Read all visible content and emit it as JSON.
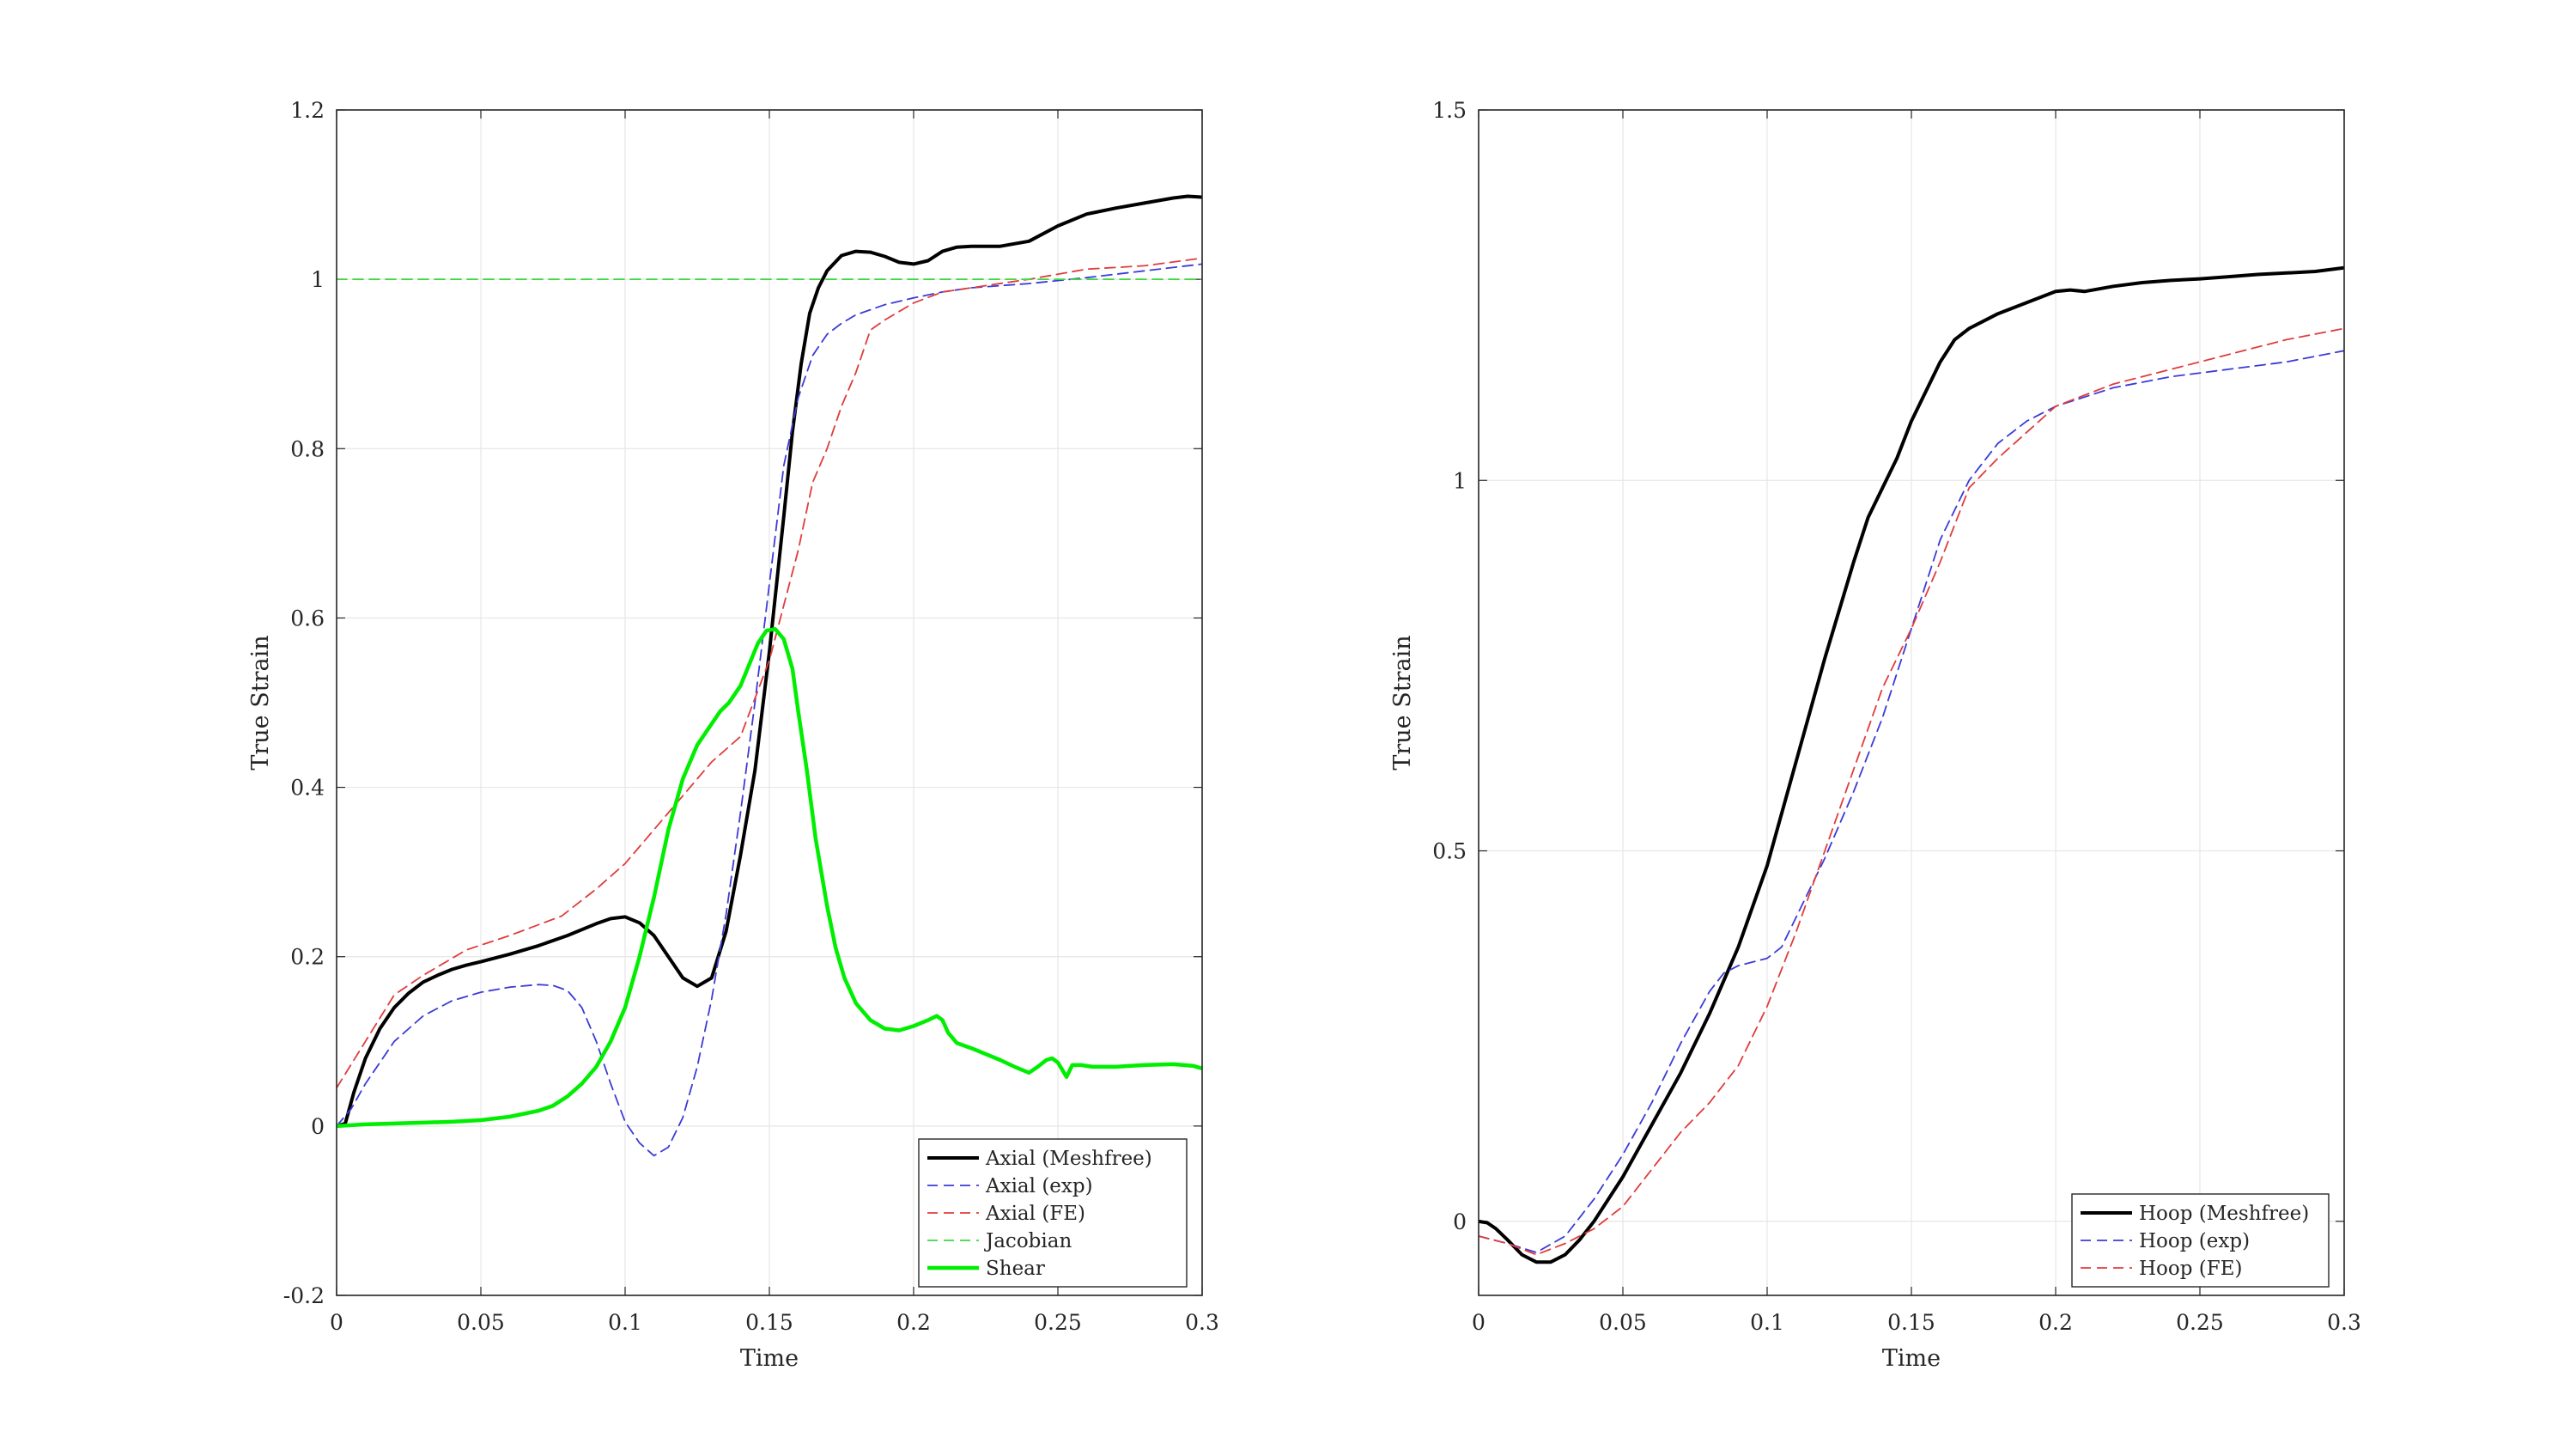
{
  "chart_data": [
    {
      "type": "line",
      "xlabel": "Time",
      "ylabel": "True Strain",
      "xlim": [
        0,
        0.3
      ],
      "ylim": [
        -0.2,
        1.2
      ],
      "xticks": [
        "0",
        "0.05",
        "0.1",
        "0.15",
        "0.2",
        "0.25",
        "0.3"
      ],
      "yticks": [
        "-0.2",
        "0",
        "0.2",
        "0.4",
        "0.6",
        "0.8",
        "1",
        "1.2"
      ],
      "grid": true,
      "legend_position": "bottom-right",
      "series": [
        {
          "name": "Axial (Meshfree)",
          "color": "#000000",
          "style": "solid",
          "width": 4,
          "x": [
            0,
            0.003,
            0.006,
            0.01,
            0.015,
            0.02,
            0.025,
            0.03,
            0.035,
            0.04,
            0.045,
            0.05,
            0.06,
            0.07,
            0.08,
            0.09,
            0.095,
            0.1,
            0.105,
            0.11,
            0.115,
            0.12,
            0.125,
            0.13,
            0.135,
            0.14,
            0.145,
            0.15,
            0.155,
            0.158,
            0.161,
            0.164,
            0.167,
            0.17,
            0.175,
            0.18,
            0.185,
            0.19,
            0.195,
            0.2,
            0.205,
            0.21,
            0.215,
            0.22,
            0.23,
            0.24,
            0.25,
            0.26,
            0.27,
            0.28,
            0.29,
            0.295,
            0.3
          ],
          "y": [
            0,
            0.003,
            0.04,
            0.08,
            0.115,
            0.14,
            0.157,
            0.17,
            0.178,
            0.185,
            0.19,
            0.194,
            0.203,
            0.213,
            0.225,
            0.239,
            0.245,
            0.247,
            0.24,
            0.225,
            0.2,
            0.175,
            0.165,
            0.175,
            0.23,
            0.32,
            0.42,
            0.56,
            0.72,
            0.82,
            0.9,
            0.96,
            0.99,
            1.01,
            1.028,
            1.033,
            1.032,
            1.027,
            1.02,
            1.018,
            1.022,
            1.033,
            1.038,
            1.039,
            1.039,
            1.045,
            1.063,
            1.077,
            1.084,
            1.09,
            1.096,
            1.098,
            1.097
          ]
        },
        {
          "name": "Axial (exp)",
          "color": "#3b3bd8",
          "style": "dashed",
          "width": 1.8,
          "x": [
            0,
            0.005,
            0.01,
            0.02,
            0.03,
            0.04,
            0.05,
            0.06,
            0.07,
            0.075,
            0.08,
            0.085,
            0.09,
            0.095,
            0.1,
            0.105,
            0.11,
            0.115,
            0.12,
            0.125,
            0.13,
            0.135,
            0.14,
            0.145,
            0.15,
            0.155,
            0.16,
            0.165,
            0.17,
            0.175,
            0.18,
            0.19,
            0.2,
            0.21,
            0.22,
            0.24,
            0.26,
            0.28,
            0.3
          ],
          "y": [
            0,
            0.02,
            0.05,
            0.1,
            0.13,
            0.148,
            0.158,
            0.164,
            0.167,
            0.166,
            0.16,
            0.14,
            0.1,
            0.05,
            0.005,
            -0.02,
            -0.035,
            -0.025,
            0.01,
            0.07,
            0.15,
            0.25,
            0.37,
            0.5,
            0.64,
            0.78,
            0.86,
            0.91,
            0.935,
            0.948,
            0.958,
            0.97,
            0.978,
            0.985,
            0.99,
            0.995,
            1.002,
            1.01,
            1.018
          ]
        },
        {
          "name": "Axial (FE)",
          "color": "#e03c3c",
          "style": "dashed",
          "width": 1.8,
          "x": [
            0,
            0.01,
            0.02,
            0.03,
            0.045,
            0.06,
            0.078,
            0.09,
            0.1,
            0.11,
            0.12,
            0.13,
            0.14,
            0.15,
            0.16,
            0.165,
            0.17,
            0.175,
            0.18,
            0.185,
            0.19,
            0.2,
            0.21,
            0.22,
            0.24,
            0.26,
            0.28,
            0.3
          ],
          "y": [
            0.045,
            0.1,
            0.155,
            0.178,
            0.208,
            0.225,
            0.248,
            0.28,
            0.31,
            0.35,
            0.39,
            0.43,
            0.46,
            0.55,
            0.68,
            0.76,
            0.8,
            0.85,
            0.89,
            0.94,
            0.952,
            0.972,
            0.985,
            0.99,
            1.0,
            1.012,
            1.016,
            1.025
          ]
        },
        {
          "name": "Jacobian",
          "color": "#3ed83e",
          "style": "dashed",
          "width": 1.8,
          "x": [
            0,
            0.3
          ],
          "y": [
            1,
            1
          ]
        },
        {
          "name": "Shear",
          "color": "#00ee00",
          "style": "solid",
          "width": 4.5,
          "x": [
            0,
            0.01,
            0.02,
            0.03,
            0.04,
            0.05,
            0.06,
            0.07,
            0.075,
            0.08,
            0.085,
            0.09,
            0.095,
            0.1,
            0.105,
            0.11,
            0.115,
            0.12,
            0.125,
            0.13,
            0.133,
            0.136,
            0.14,
            0.143,
            0.146,
            0.149,
            0.152,
            0.155,
            0.158,
            0.16,
            0.163,
            0.166,
            0.17,
            0.173,
            0.176,
            0.18,
            0.185,
            0.19,
            0.195,
            0.2,
            0.205,
            0.208,
            0.21,
            0.212,
            0.215,
            0.22,
            0.225,
            0.23,
            0.235,
            0.24,
            0.243,
            0.246,
            0.248,
            0.25,
            0.253,
            0.255,
            0.258,
            0.262,
            0.27,
            0.28,
            0.29,
            0.297,
            0.3
          ],
          "y": [
            0,
            0.002,
            0.003,
            0.004,
            0.005,
            0.007,
            0.011,
            0.018,
            0.024,
            0.035,
            0.05,
            0.07,
            0.1,
            0.14,
            0.2,
            0.27,
            0.35,
            0.41,
            0.45,
            0.475,
            0.49,
            0.5,
            0.52,
            0.545,
            0.57,
            0.585,
            0.587,
            0.575,
            0.54,
            0.49,
            0.42,
            0.34,
            0.26,
            0.21,
            0.175,
            0.145,
            0.125,
            0.115,
            0.113,
            0.118,
            0.125,
            0.13,
            0.125,
            0.11,
            0.098,
            0.092,
            0.085,
            0.078,
            0.07,
            0.063,
            0.07,
            0.078,
            0.08,
            0.075,
            0.058,
            0.072,
            0.072,
            0.07,
            0.07,
            0.072,
            0.073,
            0.071,
            0.068
          ]
        }
      ]
    },
    {
      "type": "line",
      "xlabel": "Time",
      "ylabel": "True Strain",
      "xlim": [
        0,
        0.3
      ],
      "ylim": [
        -0.1,
        1.5
      ],
      "xticks": [
        "0",
        "0.05",
        "0.1",
        "0.15",
        "0.2",
        "0.25",
        "0.3"
      ],
      "yticks": [
        "0",
        "0.5",
        "1",
        "1.5"
      ],
      "grid": true,
      "legend_position": "bottom-right",
      "series": [
        {
          "name": "Hoop (Meshfree)",
          "color": "#000000",
          "style": "solid",
          "width": 4,
          "x": [
            0,
            0.003,
            0.006,
            0.01,
            0.015,
            0.02,
            0.025,
            0.03,
            0.035,
            0.04,
            0.045,
            0.05,
            0.06,
            0.07,
            0.08,
            0.09,
            0.1,
            0.11,
            0.12,
            0.13,
            0.135,
            0.14,
            0.145,
            0.15,
            0.155,
            0.16,
            0.165,
            0.17,
            0.175,
            0.18,
            0.19,
            0.2,
            0.205,
            0.21,
            0.22,
            0.23,
            0.24,
            0.25,
            0.26,
            0.27,
            0.28,
            0.29,
            0.3
          ],
          "y": [
            0,
            -0.002,
            -0.01,
            -0.025,
            -0.045,
            -0.055,
            -0.055,
            -0.045,
            -0.025,
            0,
            0.03,
            0.06,
            0.13,
            0.2,
            0.28,
            0.37,
            0.48,
            0.62,
            0.76,
            0.89,
            0.95,
            0.99,
            1.03,
            1.08,
            1.12,
            1.16,
            1.19,
            1.205,
            1.215,
            1.225,
            1.24,
            1.255,
            1.257,
            1.255,
            1.262,
            1.267,
            1.27,
            1.272,
            1.275,
            1.278,
            1.28,
            1.282,
            1.287
          ]
        },
        {
          "name": "Hoop (exp)",
          "color": "#3b3bd8",
          "style": "dashed",
          "width": 1.8,
          "x": [
            0,
            0.01,
            0.02,
            0.03,
            0.04,
            0.05,
            0.06,
            0.07,
            0.08,
            0.085,
            0.09,
            0.095,
            0.1,
            0.105,
            0.11,
            0.12,
            0.13,
            0.14,
            0.15,
            0.16,
            0.17,
            0.18,
            0.19,
            0.2,
            0.22,
            0.24,
            0.26,
            0.28,
            0.3
          ],
          "y": [
            -0.02,
            -0.03,
            -0.042,
            -0.02,
            0.03,
            0.09,
            0.16,
            0.24,
            0.31,
            0.335,
            0.345,
            0.35,
            0.355,
            0.37,
            0.41,
            0.49,
            0.58,
            0.68,
            0.8,
            0.92,
            1.0,
            1.05,
            1.08,
            1.1,
            1.125,
            1.14,
            1.15,
            1.16,
            1.175
          ]
        },
        {
          "name": "Hoop (FE)",
          "color": "#e03c3c",
          "style": "dashed",
          "width": 1.8,
          "x": [
            0,
            0.01,
            0.02,
            0.03,
            0.04,
            0.05,
            0.06,
            0.07,
            0.08,
            0.09,
            0.1,
            0.11,
            0.12,
            0.13,
            0.14,
            0.15,
            0.16,
            0.17,
            0.18,
            0.2,
            0.22,
            0.24,
            0.26,
            0.28,
            0.3
          ],
          "y": [
            -0.02,
            -0.03,
            -0.045,
            -0.03,
            -0.01,
            0.02,
            0.07,
            0.12,
            0.16,
            0.21,
            0.29,
            0.39,
            0.5,
            0.61,
            0.72,
            0.8,
            0.89,
            0.99,
            1.03,
            1.1,
            1.13,
            1.15,
            1.17,
            1.19,
            1.205
          ]
        }
      ]
    }
  ]
}
